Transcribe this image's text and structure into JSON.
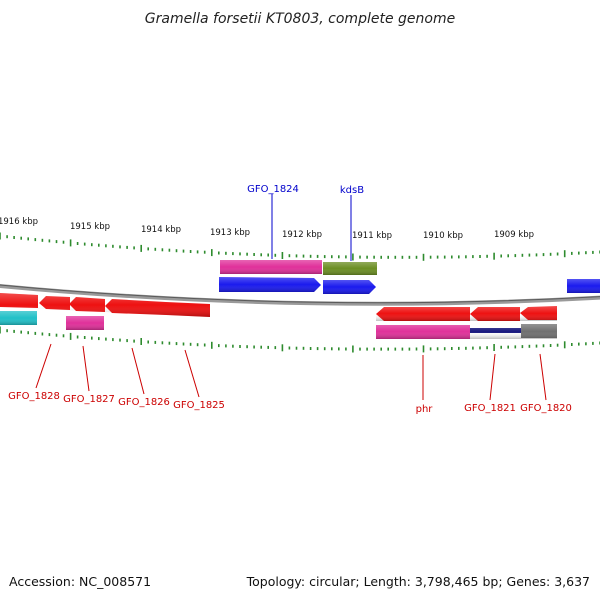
{
  "title": "Gramella forsetii KT0803, complete genome",
  "footer": {
    "accession": "Accession: NC_008571",
    "topology": "Topology: circular; Length: 3,798,465 bp; Genes: 3,637"
  },
  "kbp_ticks": [
    {
      "label": "1916 kbp",
      "pos": 1916
    },
    {
      "label": "1915 kbp",
      "pos": 1915
    },
    {
      "label": "1914 kbp",
      "pos": 1914
    },
    {
      "label": "1913 kbp",
      "pos": 1913
    },
    {
      "label": "1912 kbp",
      "pos": 1912
    },
    {
      "label": "1911 kbp",
      "pos": 1911
    },
    {
      "label": "1910 kbp",
      "pos": 1910
    },
    {
      "label": "1909 kbp",
      "pos": 1909
    }
  ],
  "colors": {
    "red": "#ee1111",
    "pink": "#e0309a",
    "blue": "#1a1aee",
    "olive": "#6b8e23",
    "cyan": "#20c0c8",
    "gray": "#707070",
    "navy": "#1a1a80",
    "tick_green": "#2e8b2e",
    "backbone": "#808080"
  },
  "genes": {
    "top_labeled": [
      {
        "label": "GFO_1824",
        "color": "blue"
      },
      {
        "label": "kdsB",
        "color": "blue"
      }
    ],
    "bottom_labeled": [
      {
        "label": "GFO_1828"
      },
      {
        "label": "GFO_1827"
      },
      {
        "label": "GFO_1826"
      },
      {
        "label": "GFO_1825"
      },
      {
        "label": "phr"
      },
      {
        "label": "GFO_1821"
      },
      {
        "label": "GFO_1820"
      }
    ]
  }
}
